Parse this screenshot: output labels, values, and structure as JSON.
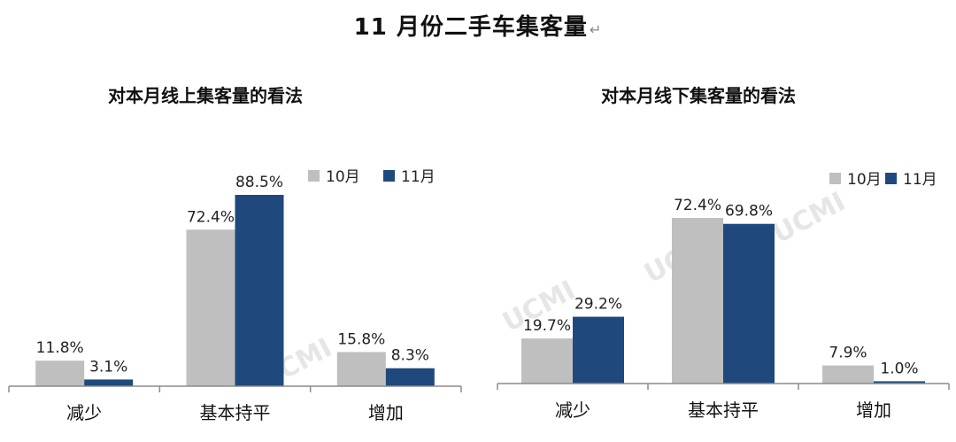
{
  "page_title": "11 月份二手车集客量",
  "watermark": "UCMI",
  "colors": {
    "oct": "#bfbfbf",
    "nov": "#1f497d",
    "axis": "#8c8c8c"
  },
  "chart_data": [
    {
      "type": "bar",
      "title": "对本月线上集客量的看法",
      "categories": [
        "减少",
        "基本持平",
        "增加"
      ],
      "series": [
        {
          "name": "10月",
          "values": [
            11.8,
            72.4,
            15.8
          ],
          "labels": [
            "11.8%",
            "72.4%",
            "15.8%"
          ]
        },
        {
          "name": "11月",
          "values": [
            3.1,
            88.5,
            8.3
          ],
          "labels": [
            "3.1%",
            "88.5%",
            "8.3%"
          ]
        }
      ],
      "ylim": [
        0,
        100
      ],
      "grid": false,
      "legend": "top-right"
    },
    {
      "type": "bar",
      "title": "对本月线下集客量的看法",
      "categories": [
        "减少",
        "基本持平",
        "增加"
      ],
      "series": [
        {
          "name": "10月",
          "values": [
            19.7,
            72.4,
            7.9
          ],
          "labels": [
            "19.7%",
            "72.4%",
            "7.9%"
          ]
        },
        {
          "name": "11月",
          "values": [
            29.2,
            69.8,
            1.0
          ],
          "labels": [
            "29.2%",
            "69.8%",
            "1.0%"
          ]
        }
      ],
      "ylim": [
        0,
        100
      ],
      "grid": false,
      "legend": "top-right"
    }
  ]
}
